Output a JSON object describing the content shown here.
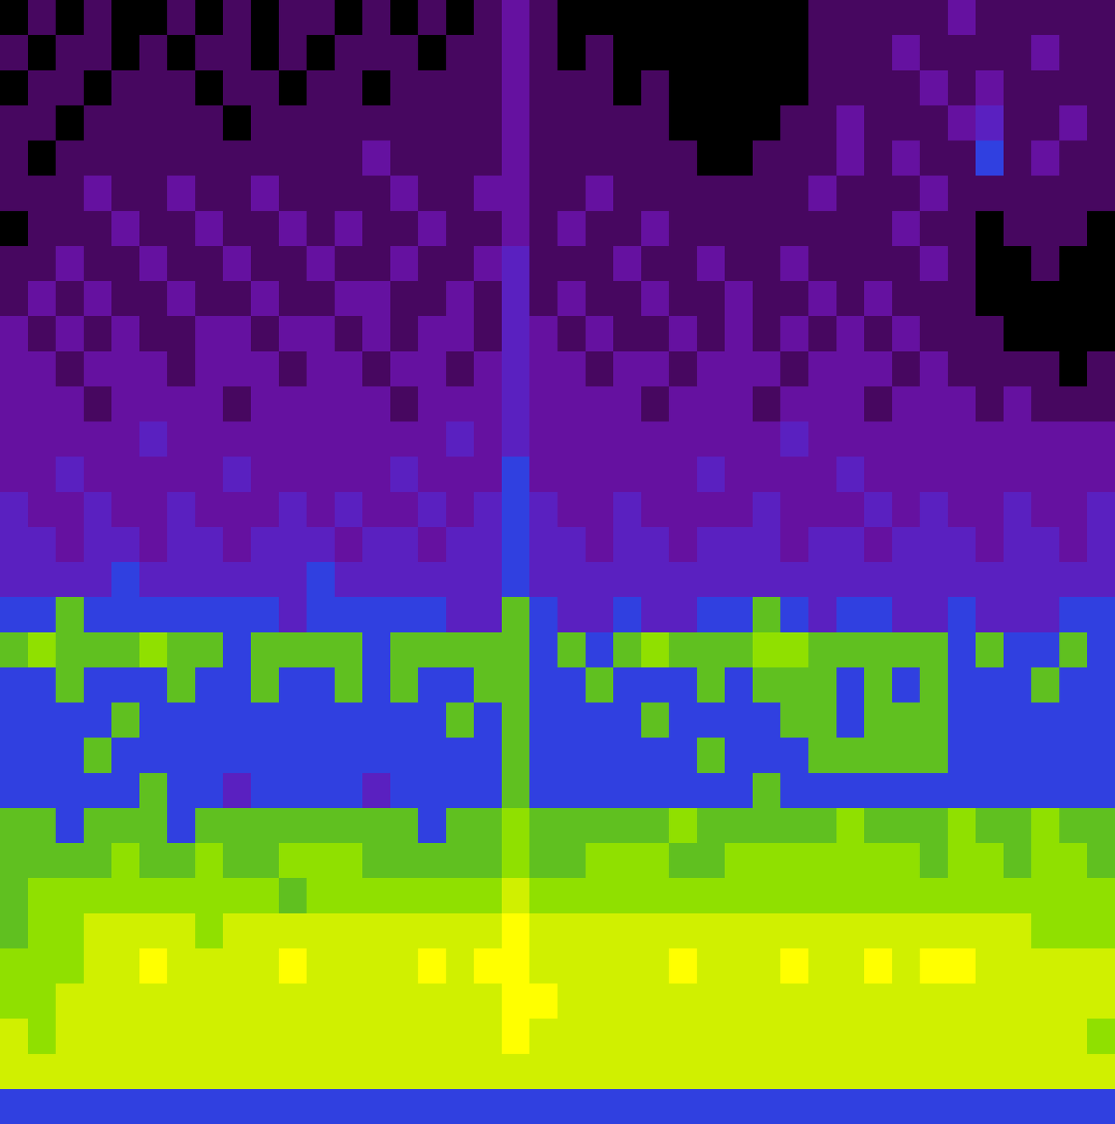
{
  "chart_data": {
    "type": "heatmap",
    "tick_labels": false,
    "zlim": [
      0,
      10
    ],
    "values": [
      [
        0,
        1,
        0,
        1,
        0,
        0,
        1,
        0,
        1,
        0,
        1,
        1,
        0,
        1,
        0,
        1,
        0,
        1,
        2,
        1,
        0,
        0,
        0,
        0,
        0,
        0,
        0,
        0,
        0,
        1,
        1,
        1,
        1,
        1,
        2,
        1,
        1,
        1,
        1,
        1
      ],
      [
        1,
        0,
        1,
        1,
        0,
        1,
        0,
        1,
        1,
        0,
        1,
        0,
        1,
        1,
        1,
        0,
        1,
        1,
        2,
        1,
        0,
        1,
        0,
        0,
        0,
        0,
        0,
        0,
        0,
        1,
        1,
        1,
        2,
        1,
        1,
        1,
        1,
        2,
        1,
        1
      ],
      [
        0,
        1,
        1,
        0,
        1,
        1,
        1,
        0,
        1,
        1,
        0,
        1,
        1,
        0,
        1,
        1,
        1,
        1,
        2,
        1,
        1,
        1,
        0,
        1,
        0,
        0,
        0,
        0,
        0,
        1,
        1,
        1,
        1,
        2,
        1,
        2,
        1,
        1,
        1,
        1
      ],
      [
        1,
        1,
        0,
        1,
        1,
        1,
        1,
        1,
        0,
        1,
        1,
        1,
        1,
        1,
        1,
        1,
        1,
        1,
        2,
        1,
        1,
        1,
        1,
        1,
        0,
        0,
        0,
        0,
        1,
        1,
        2,
        1,
        1,
        1,
        2,
        3,
        1,
        1,
        2,
        1
      ],
      [
        1,
        0,
        1,
        1,
        1,
        1,
        1,
        1,
        1,
        1,
        1,
        1,
        1,
        2,
        1,
        1,
        1,
        1,
        2,
        1,
        1,
        1,
        1,
        1,
        1,
        0,
        0,
        1,
        1,
        1,
        2,
        1,
        2,
        1,
        1,
        4,
        1,
        2,
        1,
        1
      ],
      [
        1,
        1,
        1,
        2,
        1,
        1,
        2,
        1,
        1,
        2,
        1,
        1,
        1,
        1,
        2,
        1,
        1,
        2,
        2,
        1,
        1,
        2,
        1,
        1,
        1,
        1,
        1,
        1,
        1,
        2,
        1,
        1,
        1,
        2,
        1,
        1,
        1,
        1,
        1,
        1
      ],
      [
        0,
        1,
        1,
        1,
        2,
        1,
        1,
        2,
        1,
        1,
        2,
        1,
        2,
        1,
        1,
        2,
        1,
        1,
        2,
        1,
        2,
        1,
        1,
        2,
        1,
        1,
        1,
        1,
        1,
        1,
        1,
        1,
        2,
        1,
        1,
        0,
        1,
        1,
        1,
        0
      ],
      [
        1,
        1,
        2,
        1,
        1,
        2,
        1,
        1,
        2,
        1,
        1,
        2,
        1,
        1,
        2,
        1,
        1,
        2,
        3,
        1,
        1,
        1,
        2,
        1,
        1,
        2,
        1,
        1,
        2,
        1,
        1,
        1,
        1,
        2,
        1,
        0,
        0,
        1,
        0,
        0
      ],
      [
        1,
        2,
        1,
        2,
        1,
        1,
        2,
        1,
        1,
        2,
        1,
        1,
        2,
        2,
        1,
        1,
        2,
        1,
        3,
        1,
        2,
        1,
        1,
        2,
        1,
        1,
        2,
        1,
        1,
        2,
        1,
        2,
        1,
        1,
        1,
        0,
        0,
        0,
        0,
        0
      ],
      [
        2,
        1,
        2,
        1,
        2,
        1,
        1,
        2,
        2,
        1,
        2,
        2,
        1,
        2,
        1,
        2,
        2,
        1,
        3,
        2,
        1,
        2,
        1,
        1,
        2,
        1,
        2,
        1,
        2,
        1,
        2,
        1,
        2,
        1,
        1,
        1,
        0,
        0,
        0,
        0
      ],
      [
        2,
        2,
        1,
        2,
        2,
        2,
        1,
        2,
        2,
        2,
        1,
        2,
        2,
        1,
        2,
        2,
        1,
        2,
        3,
        2,
        2,
        1,
        2,
        2,
        1,
        2,
        2,
        2,
        1,
        2,
        2,
        2,
        1,
        2,
        1,
        1,
        1,
        1,
        0,
        1
      ],
      [
        2,
        2,
        2,
        1,
        2,
        2,
        2,
        2,
        1,
        2,
        2,
        2,
        2,
        2,
        1,
        2,
        2,
        2,
        3,
        2,
        2,
        2,
        2,
        1,
        2,
        2,
        2,
        1,
        2,
        2,
        2,
        1,
        2,
        2,
        2,
        1,
        2,
        1,
        1,
        1
      ],
      [
        2,
        2,
        2,
        2,
        2,
        3,
        2,
        2,
        2,
        2,
        2,
        2,
        2,
        2,
        2,
        2,
        3,
        2,
        3,
        2,
        2,
        2,
        2,
        2,
        2,
        2,
        2,
        2,
        3,
        2,
        2,
        2,
        2,
        2,
        2,
        2,
        2,
        2,
        2,
        2
      ],
      [
        2,
        2,
        3,
        2,
        2,
        2,
        2,
        2,
        3,
        2,
        2,
        2,
        2,
        2,
        3,
        2,
        2,
        2,
        4,
        2,
        2,
        2,
        2,
        2,
        2,
        3,
        2,
        2,
        2,
        2,
        3,
        2,
        2,
        2,
        2,
        2,
        2,
        2,
        2,
        2
      ],
      [
        3,
        2,
        2,
        3,
        2,
        2,
        3,
        2,
        2,
        2,
        3,
        2,
        3,
        2,
        2,
        3,
        2,
        3,
        4,
        3,
        2,
        2,
        3,
        2,
        2,
        2,
        2,
        3,
        2,
        2,
        2,
        3,
        2,
        3,
        2,
        2,
        3,
        2,
        2,
        3
      ],
      [
        3,
        3,
        2,
        3,
        3,
        2,
        3,
        3,
        2,
        3,
        3,
        3,
        2,
        3,
        3,
        2,
        3,
        3,
        4,
        3,
        3,
        2,
        3,
        3,
        2,
        3,
        3,
        3,
        2,
        3,
        3,
        2,
        3,
        3,
        3,
        2,
        3,
        3,
        2,
        3
      ],
      [
        3,
        3,
        3,
        3,
        4,
        3,
        3,
        3,
        3,
        3,
        3,
        4,
        3,
        3,
        3,
        3,
        3,
        3,
        4,
        3,
        3,
        3,
        3,
        3,
        3,
        3,
        3,
        3,
        3,
        3,
        3,
        3,
        3,
        3,
        3,
        3,
        3,
        3,
        3,
        3
      ],
      [
        4,
        4,
        5,
        4,
        4,
        4,
        4,
        4,
        4,
        4,
        3,
        4,
        4,
        4,
        4,
        4,
        3,
        3,
        5,
        4,
        3,
        3,
        4,
        3,
        3,
        4,
        4,
        5,
        4,
        3,
        4,
        4,
        3,
        3,
        4,
        3,
        3,
        3,
        4,
        4
      ],
      [
        5,
        6,
        5,
        5,
        5,
        6,
        5,
        5,
        4,
        5,
        5,
        5,
        5,
        4,
        5,
        5,
        5,
        5,
        5,
        4,
        5,
        4,
        5,
        6,
        5,
        5,
        5,
        6,
        6,
        5,
        5,
        5,
        5,
        5,
        4,
        5,
        4,
        4,
        5,
        4
      ],
      [
        4,
        4,
        5,
        4,
        4,
        4,
        5,
        4,
        4,
        5,
        4,
        4,
        5,
        4,
        5,
        4,
        4,
        5,
        5,
        4,
        4,
        5,
        4,
        4,
        4,
        5,
        4,
        5,
        5,
        5,
        4,
        5,
        4,
        5,
        4,
        4,
        4,
        5,
        4,
        4
      ],
      [
        4,
        4,
        4,
        4,
        5,
        4,
        4,
        4,
        4,
        4,
        4,
        4,
        4,
        4,
        4,
        4,
        5,
        4,
        5,
        4,
        4,
        4,
        4,
        5,
        4,
        4,
        4,
        4,
        5,
        5,
        4,
        5,
        5,
        5,
        4,
        4,
        4,
        4,
        4,
        4
      ],
      [
        4,
        4,
        4,
        5,
        4,
        4,
        4,
        4,
        4,
        4,
        4,
        4,
        4,
        4,
        4,
        4,
        4,
        4,
        5,
        4,
        4,
        4,
        4,
        4,
        4,
        5,
        4,
        4,
        4,
        5,
        5,
        5,
        5,
        5,
        4,
        4,
        4,
        4,
        4,
        4
      ],
      [
        4,
        4,
        4,
        4,
        4,
        5,
        4,
        4,
        3,
        4,
        4,
        4,
        4,
        3,
        4,
        4,
        4,
        4,
        5,
        4,
        4,
        4,
        4,
        4,
        4,
        4,
        4,
        5,
        4,
        4,
        4,
        4,
        4,
        4,
        4,
        4,
        4,
        4,
        4,
        4
      ],
      [
        5,
        5,
        4,
        5,
        5,
        5,
        4,
        5,
        5,
        5,
        5,
        5,
        5,
        5,
        5,
        4,
        5,
        5,
        6,
        5,
        5,
        5,
        5,
        5,
        6,
        5,
        5,
        5,
        5,
        5,
        6,
        5,
        5,
        5,
        6,
        5,
        5,
        6,
        5,
        5
      ],
      [
        5,
        5,
        5,
        5,
        6,
        5,
        5,
        6,
        5,
        5,
        6,
        6,
        6,
        5,
        5,
        5,
        5,
        5,
        6,
        5,
        5,
        6,
        6,
        6,
        5,
        5,
        6,
        6,
        6,
        6,
        6,
        6,
        6,
        5,
        6,
        6,
        5,
        6,
        6,
        5
      ],
      [
        5,
        6,
        6,
        6,
        6,
        6,
        6,
        6,
        6,
        6,
        5,
        6,
        6,
        6,
        6,
        6,
        6,
        6,
        7,
        6,
        6,
        6,
        6,
        6,
        6,
        6,
        6,
        6,
        6,
        6,
        6,
        6,
        6,
        6,
        6,
        6,
        6,
        6,
        6,
        6
      ],
      [
        5,
        6,
        6,
        7,
        7,
        7,
        7,
        6,
        7,
        7,
        7,
        7,
        7,
        7,
        7,
        7,
        7,
        7,
        8,
        7,
        7,
        7,
        7,
        7,
        7,
        7,
        7,
        7,
        7,
        7,
        7,
        7,
        7,
        7,
        7,
        7,
        7,
        6,
        6,
        6
      ],
      [
        6,
        6,
        6,
        7,
        7,
        8,
        7,
        7,
        7,
        7,
        8,
        7,
        7,
        7,
        7,
        8,
        7,
        8,
        8,
        7,
        7,
        7,
        7,
        7,
        8,
        7,
        7,
        7,
        8,
        7,
        7,
        8,
        7,
        8,
        8,
        7,
        7,
        7,
        7,
        7
      ],
      [
        6,
        6,
        7,
        7,
        7,
        7,
        7,
        7,
        7,
        7,
        7,
        7,
        7,
        7,
        7,
        7,
        7,
        7,
        8,
        8,
        7,
        7,
        7,
        7,
        7,
        7,
        7,
        7,
        7,
        7,
        7,
        7,
        7,
        7,
        7,
        7,
        7,
        7,
        7,
        7
      ],
      [
        7,
        6,
        7,
        7,
        7,
        7,
        7,
        7,
        7,
        7,
        7,
        7,
        7,
        7,
        7,
        7,
        7,
        7,
        8,
        7,
        7,
        7,
        7,
        7,
        7,
        7,
        7,
        7,
        7,
        7,
        7,
        7,
        7,
        7,
        7,
        7,
        7,
        7,
        7,
        6
      ],
      [
        7,
        7,
        7,
        7,
        7,
        7,
        7,
        7,
        7,
        7,
        7,
        7,
        7,
        7,
        7,
        7,
        7,
        7,
        7,
        7,
        7,
        7,
        7,
        7,
        7,
        7,
        7,
        7,
        7,
        7,
        7,
        7,
        7,
        7,
        7,
        7,
        7,
        7,
        7,
        7
      ],
      [
        4,
        4,
        4,
        4,
        4,
        4,
        4,
        4,
        4,
        4,
        4,
        4,
        4,
        4,
        4,
        4,
        4,
        4,
        4,
        4,
        4,
        4,
        4,
        4,
        4,
        4,
        4,
        4,
        4,
        4,
        4,
        4,
        4,
        4,
        4,
        4,
        4,
        4,
        4,
        4
      ]
    ]
  }
}
